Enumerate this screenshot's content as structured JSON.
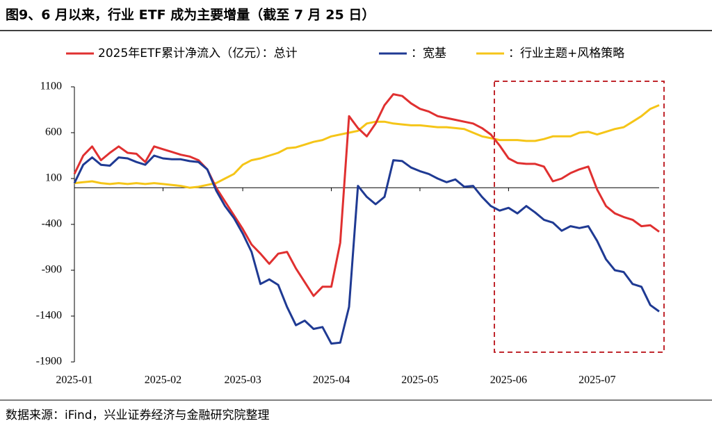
{
  "header": {
    "title": "图9、6 月以来，行业 ETF 成为主要增量（截至 7 月 25 日）"
  },
  "chart_data": {
    "type": "line",
    "categories": [
      "2025-01",
      null,
      null,
      null,
      null,
      null,
      null,
      null,
      null,
      null,
      "2025-02",
      null,
      null,
      null,
      null,
      null,
      null,
      null,
      null,
      "2025-03",
      null,
      null,
      null,
      null,
      null,
      null,
      null,
      null,
      null,
      "2025-04",
      null,
      null,
      null,
      null,
      null,
      null,
      null,
      null,
      null,
      "2025-05",
      null,
      null,
      null,
      null,
      null,
      null,
      null,
      null,
      null,
      "2025-06",
      null,
      null,
      null,
      null,
      null,
      null,
      null,
      null,
      null,
      "2025-07",
      null,
      null,
      null,
      null,
      null,
      null,
      null
    ],
    "series": [
      {
        "name": "2025年ETF累计净流入（亿元）：总计",
        "color": "#e03030",
        "values": [
          150,
          350,
          450,
          300,
          380,
          450,
          380,
          370,
          280,
          450,
          420,
          390,
          360,
          340,
          300,
          200,
          0,
          -150,
          -300,
          -450,
          -620,
          -720,
          -830,
          -720,
          -700,
          -880,
          -1030,
          -1180,
          -1080,
          -1080,
          -600,
          780,
          650,
          560,
          700,
          900,
          1020,
          1000,
          920,
          860,
          830,
          780,
          760,
          740,
          720,
          700,
          650,
          580,
          460,
          320,
          270,
          260,
          260,
          230,
          70,
          100,
          160,
          200,
          230,
          -20,
          -200,
          -280,
          -320,
          -350,
          -420,
          -410,
          -480
        ]
      },
      {
        "name": "：宽基",
        "color": "#1f3a93",
        "values": [
          50,
          250,
          330,
          250,
          240,
          330,
          320,
          280,
          250,
          350,
          320,
          310,
          310,
          290,
          280,
          200,
          -30,
          -200,
          -330,
          -500,
          -700,
          -1050,
          -1000,
          -1060,
          -1300,
          -1500,
          -1450,
          -1540,
          -1520,
          -1700,
          -1690,
          -1300,
          20,
          -100,
          -180,
          -100,
          300,
          290,
          220,
          180,
          150,
          100,
          60,
          90,
          10,
          20,
          -100,
          -200,
          -250,
          -220,
          -280,
          -200,
          -270,
          -350,
          -380,
          -470,
          -420,
          -440,
          -420,
          -580,
          -780,
          -900,
          -920,
          -1050,
          -1080,
          -1280,
          -1350
        ]
      },
      {
        "name": "：行业主题+风格策略",
        "color": "#f5c518",
        "values": [
          50,
          60,
          70,
          50,
          40,
          50,
          40,
          50,
          40,
          50,
          40,
          30,
          20,
          0,
          10,
          30,
          50,
          100,
          150,
          250,
          300,
          320,
          350,
          380,
          430,
          440,
          470,
          500,
          520,
          560,
          580,
          600,
          620,
          700,
          720,
          720,
          700,
          690,
          680,
          680,
          670,
          660,
          660,
          650,
          640,
          600,
          560,
          540,
          520,
          520,
          520,
          510,
          510,
          530,
          560,
          560,
          560,
          600,
          610,
          580,
          610,
          640,
          660,
          720,
          780,
          860,
          900
        ]
      }
    ],
    "ylim": [
      -1900,
      1100
    ],
    "yticks": [
      -1900,
      -1400,
      -900,
      -400,
      100,
      600,
      1100
    ]
  },
  "footer": {
    "source": "数据来源：iFind，兴业证券经济与金融研究院整理"
  }
}
